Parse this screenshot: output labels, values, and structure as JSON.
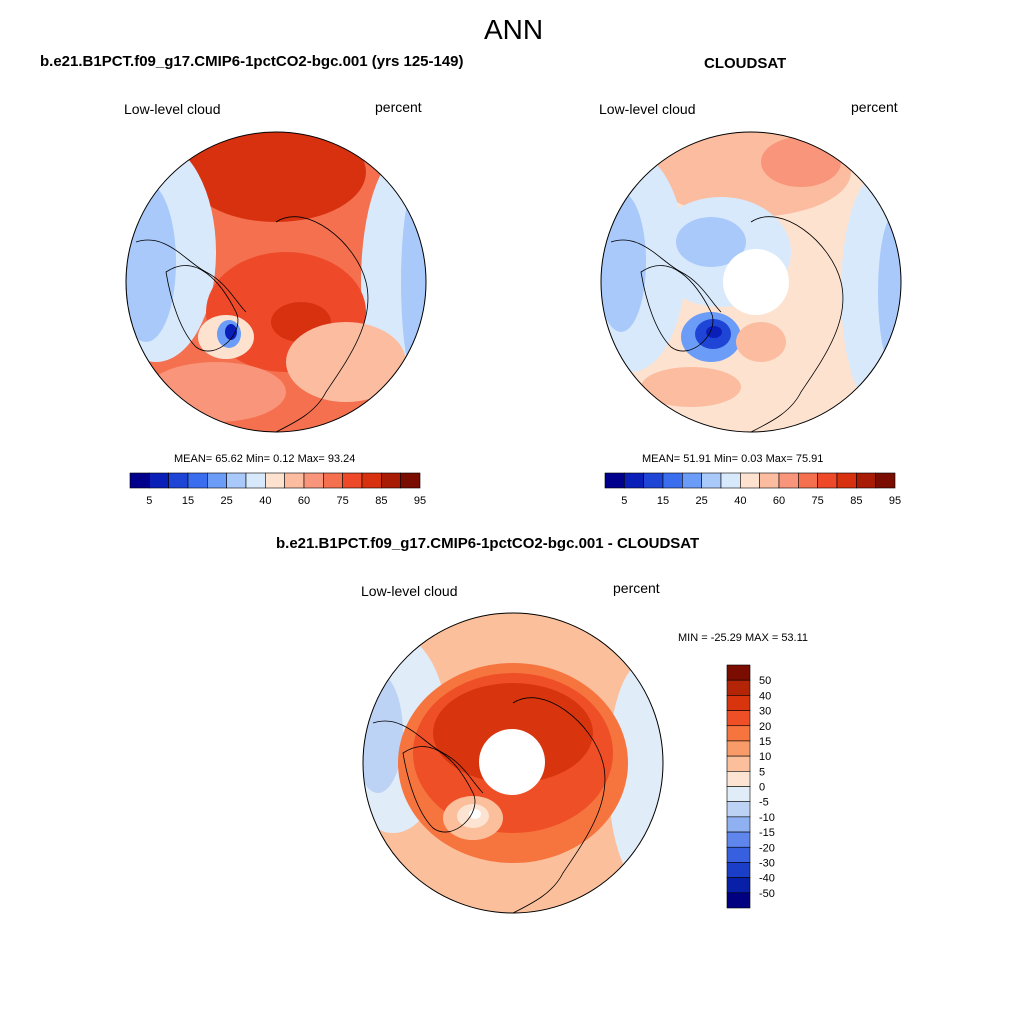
{
  "page_title": "ANN",
  "chart_data": [
    {
      "type": "heatmap",
      "projection": "north polar stereographic",
      "title": "b.e21.B1PCT.f09_g17.CMIP6-1pctCO2-bgc.001 (yrs 125-149)",
      "variable": "Low-level cloud",
      "units": "percent",
      "stats": {
        "mean_label": "MEAN=",
        "mean": 65.62,
        "min_label": "Min=",
        "min": 0.12,
        "max_label": "Max=",
        "max": 93.24
      },
      "colorbar": {
        "tick_labels": [
          "5",
          "15",
          "25",
          "40",
          "60",
          "75",
          "85",
          "95"
        ],
        "colors": [
          "#00008c",
          "#0a1fb8",
          "#1f45d6",
          "#3b6eef",
          "#6b9cf7",
          "#a9c9fb",
          "#d8e9fb",
          "#fde2d0",
          "#fbbca0",
          "#f8957a",
          "#f4704f",
          "#ee4a2a",
          "#d8310f",
          "#a81b05",
          "#7a0d00"
        ]
      }
    },
    {
      "type": "heatmap",
      "projection": "north polar stereographic",
      "title": "CLOUDSAT",
      "variable": "Low-level cloud",
      "units": "percent",
      "stats": {
        "mean_label": "MEAN=",
        "mean": 51.91,
        "min_label": "Min=",
        "min": 0.03,
        "max_label": "Max=",
        "max": 75.91
      },
      "colorbar": {
        "tick_labels": [
          "5",
          "15",
          "25",
          "40",
          "60",
          "75",
          "85",
          "95"
        ],
        "colors": [
          "#00008c",
          "#0a1fb8",
          "#1f45d6",
          "#3b6eef",
          "#6b9cf7",
          "#a9c9fb",
          "#d8e9fb",
          "#fde2d0",
          "#fbbca0",
          "#f8957a",
          "#f4704f",
          "#ee4a2a",
          "#d8310f",
          "#a81b05",
          "#7a0d00"
        ]
      }
    },
    {
      "type": "heatmap",
      "projection": "north polar stereographic",
      "title": "b.e21.B1PCT.f09_g17.CMIP6-1pctCO2-bgc.001 - CLOUDSAT",
      "variable": "Low-level cloud",
      "units": "percent",
      "stats_text": "MIN = -25.29 MAX =  53.11",
      "stats": {
        "min": -25.29,
        "max": 53.11
      },
      "colorbar": {
        "tick_labels": [
          "50",
          "40",
          "30",
          "20",
          "15",
          "10",
          "5",
          "0",
          "-5",
          "-10",
          "-15",
          "-20",
          "-30",
          "-40",
          "-50"
        ],
        "colors": [
          "#7a0d00",
          "#b42406",
          "#d8350f",
          "#ef4f27",
          "#f6753f",
          "#f99a69",
          "#fbbf9c",
          "#fde4d2",
          "#e0ecf8",
          "#bcd3f5",
          "#8fb1f2",
          "#5e86ec",
          "#3660e0",
          "#1a3ec8",
          "#0820a8",
          "#000080"
        ]
      }
    }
  ]
}
